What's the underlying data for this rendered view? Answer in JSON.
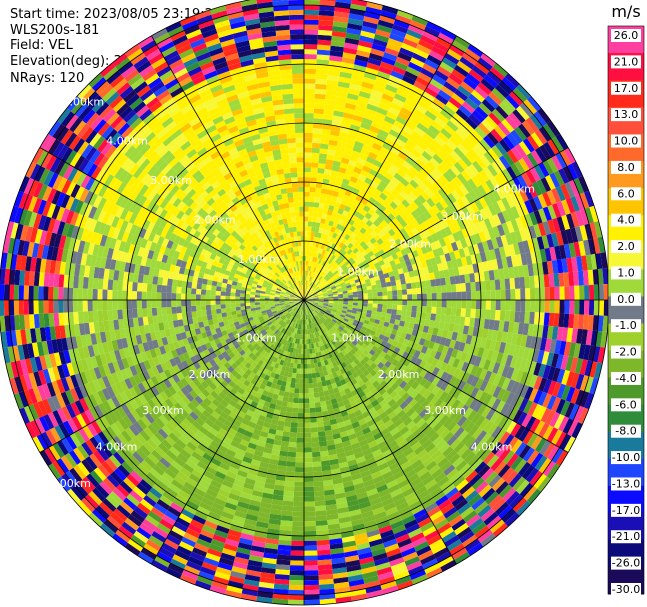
{
  "header": {
    "start_time": "Start time: 2023/08/05 23:19:25",
    "instrument": "WLS200s-181",
    "field": "Field: VEL",
    "elevation": "Elevation(deg): 35.30",
    "nrays": "NRays: 120"
  },
  "colorbar": {
    "unit": "m/s",
    "labels": [
      "26.0",
      "21.0",
      "17.0",
      "13.0",
      "10.0",
      "8.0",
      "6.0",
      "4.0",
      "2.0",
      "1.0",
      "0.0",
      "-1.0",
      "-2.0",
      "-4.0",
      "-6.0",
      "-8.0",
      "-10.0",
      "-13.0",
      "-17.0",
      "-21.0",
      "-26.0",
      "-30.0"
    ],
    "colors": [
      "#ff3fa0",
      "#ff0f3f",
      "#ff2a1a",
      "#ff4f3a",
      "#ff6a2a",
      "#ff9a1f",
      "#ffc400",
      "#fff100",
      "#f7f735",
      "#9fd93a",
      "#707a88",
      "#9fd12e",
      "#7fb72a",
      "#4d9a2a",
      "#2f8d3a",
      "#1a7a9c",
      "#1f46ff",
      "#0b0bff",
      "#1a0fb5",
      "#0a0a7a",
      "#1a0a5a"
    ]
  },
  "chart_data": {
    "type": "heatmap",
    "projection": "polar (PPI scan)",
    "field": "VEL",
    "units": "m/s",
    "nrays": 120,
    "range_rings_km": [
      1.0,
      2.0,
      3.0,
      4.0,
      5.0
    ],
    "ring_labels": {
      "upper_left": [
        "1.00km",
        "2.00km",
        "3.00km",
        "4.00km",
        "5.00km"
      ],
      "upper_right": [
        "1.00km",
        "2.00km",
        "3.00km",
        "4.00km"
      ],
      "lower_left": [
        "1.00km",
        "2.00km",
        "3.00km",
        "4.00km",
        "5.00km"
      ],
      "lower_right": [
        "1.00km",
        "2.00km",
        "3.00km",
        "4.00km"
      ]
    },
    "color_range": [
      -30.0,
      26.0
    ],
    "dominant_values": {
      "north_sector": "2.0 to 6.0",
      "south_sector": "0.0 to -4.0",
      "outer_ring_beyond_4km": "mixed -30.0 to 26.0 (noise)"
    }
  }
}
